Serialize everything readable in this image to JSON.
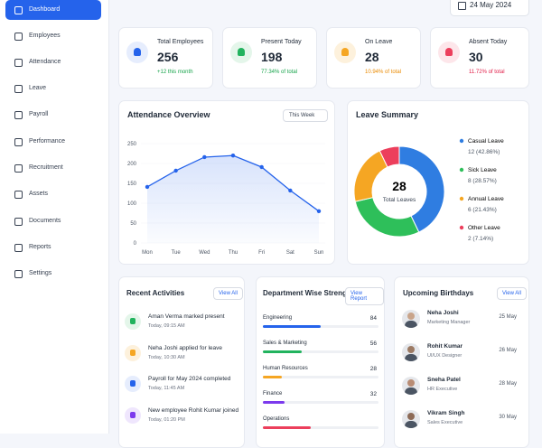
{
  "sidebar": {
    "items": [
      "Dashboard",
      "Employees",
      "Attendance",
      "Leave",
      "Payroll",
      "Performance",
      "Recruitment",
      "Assets",
      "Documents",
      "Reports",
      "Settings"
    ]
  },
  "header": {
    "date": "24 May 2024"
  },
  "stats": [
    {
      "label": "Total Employees",
      "value": 256,
      "sub": "+12 this month"
    },
    {
      "label": "Present Today",
      "value": 198,
      "sub": "77.34% of total"
    },
    {
      "label": "On Leave",
      "value": 28,
      "sub": "10.94% of total"
    },
    {
      "label": "Absent Today",
      "value": 30,
      "sub": "11.72% of total"
    }
  ],
  "attendance": {
    "type": "line",
    "title": "Attendance Overview",
    "filter": "This Week",
    "categories": [
      "Mon",
      "Tue",
      "Wed",
      "Thu",
      "Fri",
      "Sat",
      "Sun"
    ],
    "values": [
      141,
      182,
      216,
      220,
      191,
      132,
      80
    ],
    "color": "#2563eb",
    "ylim": [
      0,
      250
    ],
    "yticks": [
      0,
      50,
      100,
      150,
      200,
      250
    ]
  },
  "leave": {
    "type": "pie",
    "title": "Leave Summary",
    "total": 28,
    "total_label": "Total Leaves",
    "series": [
      {
        "name": "Casual Leave",
        "value": 12,
        "value_label": "12 (42.86%)",
        "color": "#2f7de1"
      },
      {
        "name": "Sick Leave",
        "value": 8,
        "value_label": "8 (28.57%)",
        "color": "#2ebf5a"
      },
      {
        "name": "Annual Leave",
        "value": 6,
        "value_label": "6 (21.43%)",
        "color": "#f5a623"
      },
      {
        "name": "Other Leave",
        "value": 2,
        "value_label": "2 (7.14%)",
        "color": "#ec3f5c"
      }
    ]
  },
  "activities": {
    "title": "Recent Activities",
    "button": "View All",
    "items": [
      {
        "text": "Aman Verma marked present",
        "time": "Today, 09:15 AM"
      },
      {
        "text": "Neha Joshi applied for leave",
        "time": "Today, 10:30 AM"
      },
      {
        "text": "Payroll for May 2024 completed",
        "time": "Today, 11:45 AM"
      },
      {
        "text": "New employee Rohit Kumar joined",
        "time": "Today, 01:20 PM"
      }
    ]
  },
  "departments": {
    "title": "Department Wise Strength",
    "button": "View Report",
    "items": [
      {
        "name": "Engineering",
        "value": 84,
        "color": "#2563eb"
      },
      {
        "name": "Sales & Marketing",
        "value": 56,
        "color": "#22b35e"
      },
      {
        "name": "Human Resources",
        "value": 28,
        "color": "#f5a623"
      },
      {
        "name": "Finance",
        "value": 32,
        "color": "#7c3aed"
      },
      {
        "name": "Operations",
        "color": "#ec3f5c"
      }
    ]
  },
  "birthdays": {
    "title": "Upcoming Birthdays",
    "button": "View All",
    "items": [
      {
        "name": "Neha Joshi",
        "role": "Marketing Manager",
        "date": "25 May"
      },
      {
        "name": "Rohit Kumar",
        "role": "UI/UX Designer",
        "date": "26 May"
      },
      {
        "name": "Sneha Patel",
        "role": "HR Executive",
        "date": "28 May"
      },
      {
        "name": "Vikram Singh",
        "role": "Sales Executive",
        "date": "30 May"
      }
    ]
  }
}
